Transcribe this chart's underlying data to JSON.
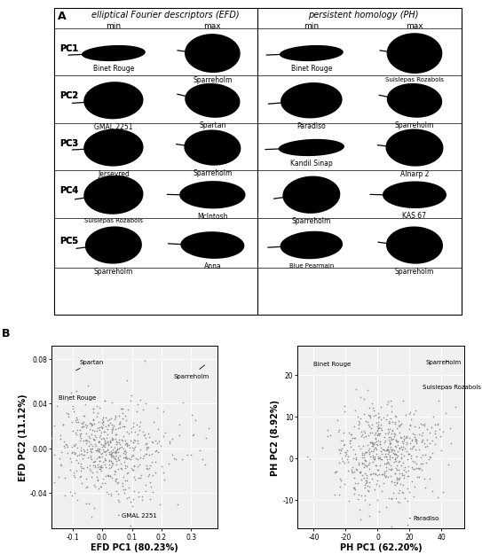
{
  "panel_A_title": "A",
  "panel_B_title": "B",
  "efd_title": "elliptical Fourier descriptors (EFD)",
  "ph_title": "persistent homology (PH)",
  "col_headers": [
    "min",
    "max",
    "min",
    "max"
  ],
  "row_labels": [
    "PC1",
    "PC2",
    "PC3",
    "PC4",
    "PC5"
  ],
  "efd_labels": [
    [
      "Binet Rouge",
      "Sparreholm"
    ],
    [
      "GMAL 2251",
      "Spartan"
    ],
    [
      "Jerseyred",
      "Sparreholm"
    ],
    [
      "Suislepas Rozabols",
      "McIntosh"
    ],
    [
      "Sparreholm",
      "Anna"
    ]
  ],
  "ph_labels": [
    [
      "Binet Rouge",
      "Suislepas Rozabols"
    ],
    [
      "Paradiso",
      "Sparreholm"
    ],
    [
      "Kandil Sinap",
      "Alnarp 2"
    ],
    [
      "Sparreholm",
      "KAS 67"
    ],
    [
      "Blue Pearmain",
      "Sparreholm"
    ]
  ],
  "scatter_bg": "#f0f0f0",
  "point_color": "#888888",
  "point_size": 2.5,
  "efd_xlabel": "EFD PC1 (80.23%)",
  "efd_ylabel": "EFD PC2 (11.12%)",
  "ph_xlabel": "PH PC1 (62.20%)",
  "ph_ylabel": "PH PC2 (8.92%)",
  "efd_xlim": [
    -0.17,
    0.39
  ],
  "efd_ylim": [
    -0.072,
    0.092
  ],
  "ph_xlim": [
    -50,
    54
  ],
  "ph_ylim": [
    -17,
    27
  ],
  "efd_xticks": [
    -0.1,
    0.0,
    0.1,
    0.2,
    0.3
  ],
  "efd_yticks": [
    -0.04,
    0.0,
    0.04,
    0.08
  ],
  "ph_xticks": [
    -40,
    -20,
    0,
    20,
    40
  ],
  "ph_yticks": [
    -10,
    0,
    10,
    20
  ],
  "leaf_color": "#000000",
  "background_color": "#ffffff"
}
